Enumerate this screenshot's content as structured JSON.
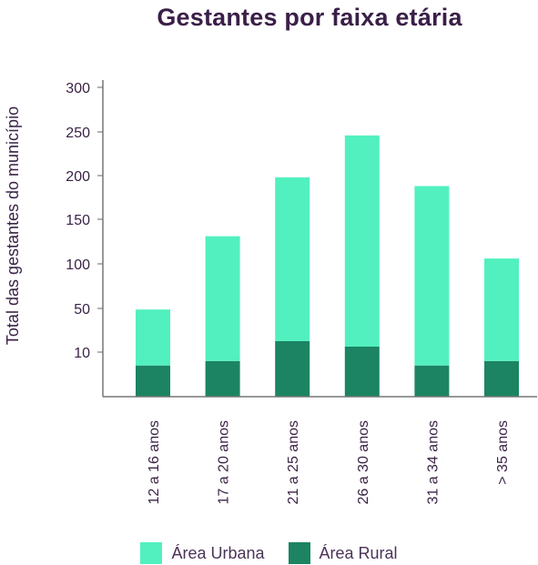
{
  "chart_data": {
    "type": "bar",
    "stacked": true,
    "title": "Gestantes por faixa etária",
    "ylabel": "Total das gestantes do município",
    "xlabel": "",
    "categories": [
      "12 a 16 anos",
      "17 a 20 anos",
      "21 a 25 anos",
      "26 a 30 anos",
      "31 a 34 anos",
      "> 35 anos"
    ],
    "y_ticks": [
      10,
      50,
      100,
      150,
      200,
      250,
      300
    ],
    "series": [
      {
        "name": "Área Rural",
        "color": "#1c8462",
        "values": [
          7,
          8,
          20,
          15,
          7,
          8
        ]
      },
      {
        "name": "Área Urbana",
        "color": "#52f0bf",
        "values": [
          42,
          123,
          178,
          231,
          181,
          98
        ]
      }
    ],
    "legend_position": "bottom-center",
    "grid": false
  }
}
